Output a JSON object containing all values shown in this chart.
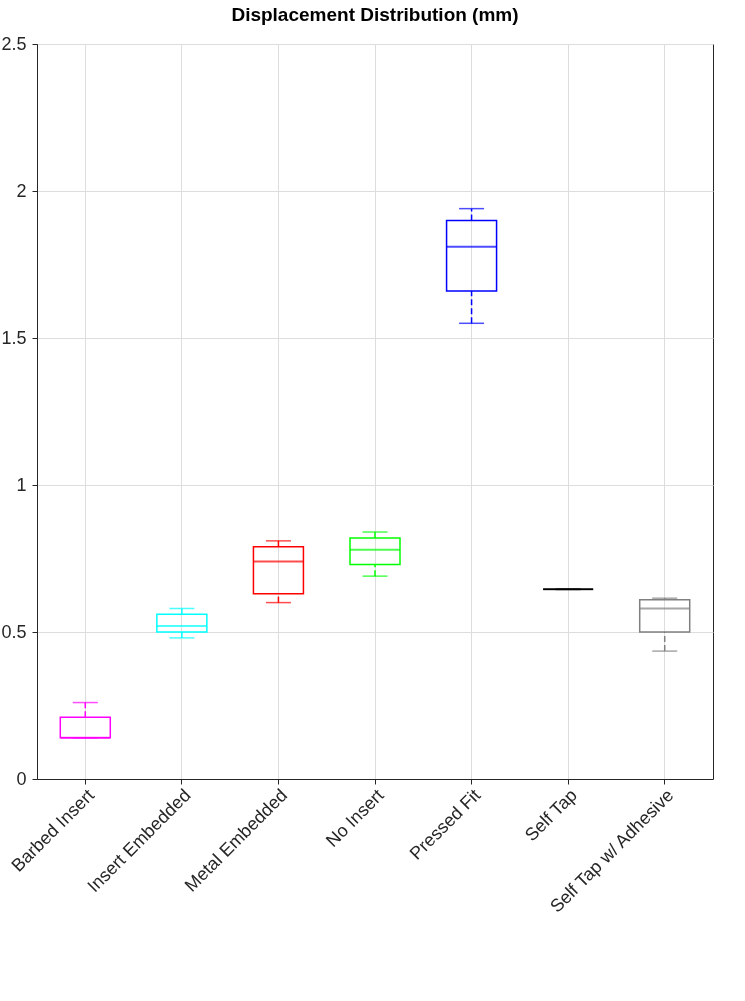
{
  "chart_data": {
    "type": "box",
    "title": "Displacement Distribution (mm)",
    "categories": [
      "Barbed Insert",
      "Insert Embedded",
      "Metal Embedded",
      "No Insert",
      "Pressed Fit",
      "Self Tap",
      "Self Tap w/ Adhesive"
    ],
    "colors": [
      "#ff00ff",
      "#00ffff",
      "#ff0000",
      "#00ff00",
      "#0000ff",
      "#000000",
      "#808080"
    ],
    "boxes": [
      {
        "low": 0.14,
        "q1": 0.14,
        "median": 0.14,
        "q3": 0.21,
        "high": 0.26
      },
      {
        "low": 0.48,
        "q1": 0.5,
        "median": 0.52,
        "q3": 0.56,
        "high": 0.58
      },
      {
        "low": 0.6,
        "q1": 0.63,
        "median": 0.74,
        "q3": 0.79,
        "high": 0.81
      },
      {
        "low": 0.69,
        "q1": 0.73,
        "median": 0.78,
        "q3": 0.82,
        "high": 0.84
      },
      {
        "low": 1.55,
        "q1": 1.66,
        "median": 1.81,
        "q3": 1.9,
        "high": 1.94
      },
      {
        "low": 0.645,
        "q1": 0.645,
        "median": 0.645,
        "q3": 0.645,
        "high": 0.645
      },
      {
        "low": 0.435,
        "q1": 0.5,
        "median": 0.58,
        "q3": 0.61,
        "high": 0.615
      }
    ],
    "ylim": [
      0,
      2.5
    ],
    "yticks": [
      0,
      0.5,
      1,
      1.5,
      2,
      2.5
    ],
    "grid": true
  }
}
